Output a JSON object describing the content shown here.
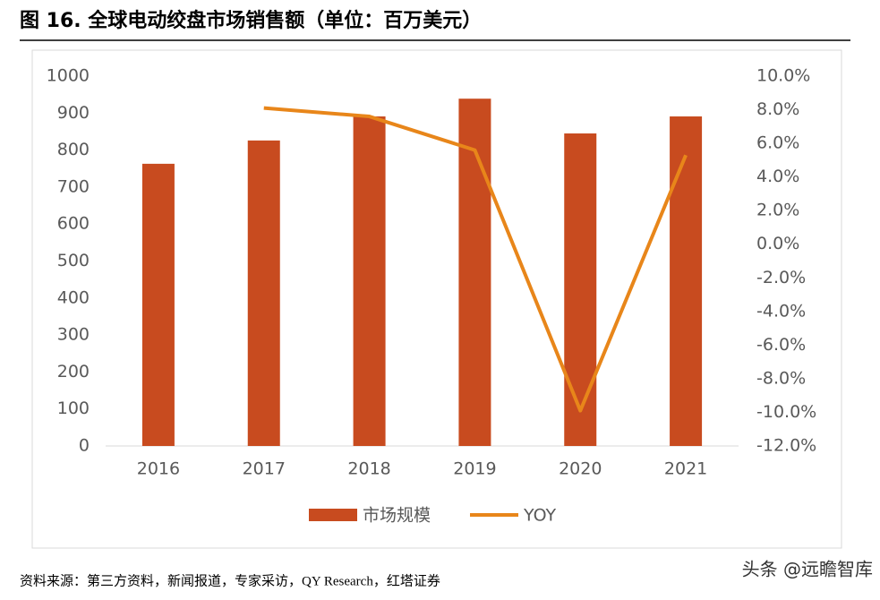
{
  "chart_data": {
    "type": "bar-line",
    "title": "图 16. 全球电动绞盘市场销售额（单位：百万美元）",
    "categories": [
      "2016",
      "2017",
      "2018",
      "2019",
      "2020",
      "2021"
    ],
    "series": [
      {
        "name": "市场规模",
        "type": "bar",
        "color": "#c84b1f",
        "values": [
          763,
          826,
          891,
          939,
          845,
          891
        ]
      },
      {
        "name": "YOY",
        "type": "line",
        "axis": "y2",
        "color": "#e8861a",
        "values": [
          null,
          8.1,
          7.6,
          5.6,
          -9.9,
          5.3
        ]
      }
    ],
    "ylim": [
      0,
      1000
    ],
    "yticks": [
      0,
      100,
      200,
      300,
      400,
      500,
      600,
      700,
      800,
      900,
      1000
    ],
    "y2lim": [
      -12,
      10
    ],
    "y2ticks": [
      {
        "value": 10,
        "label": "10.0%"
      },
      {
        "value": 8,
        "label": "8.0%"
      },
      {
        "value": 6,
        "label": "6.0%"
      },
      {
        "value": 4,
        "label": "4.0%"
      },
      {
        "value": 2,
        "label": "2.0%"
      },
      {
        "value": 0,
        "label": "0.0%"
      },
      {
        "value": -2,
        "label": "-2.0%"
      },
      {
        "value": -4,
        "label": "-4.0%"
      },
      {
        "value": -6,
        "label": "-6.0%"
      },
      {
        "value": -8,
        "label": "-8.0%"
      },
      {
        "value": -10,
        "label": "-10.0%"
      },
      {
        "value": -12,
        "label": "-12.0%"
      }
    ],
    "grid": false,
    "legend": "bottom"
  },
  "source": "资料来源：第三方资料，新闻报道，专家采访，QY Research，红塔证券",
  "watermark": "头条 @远瞻智库"
}
